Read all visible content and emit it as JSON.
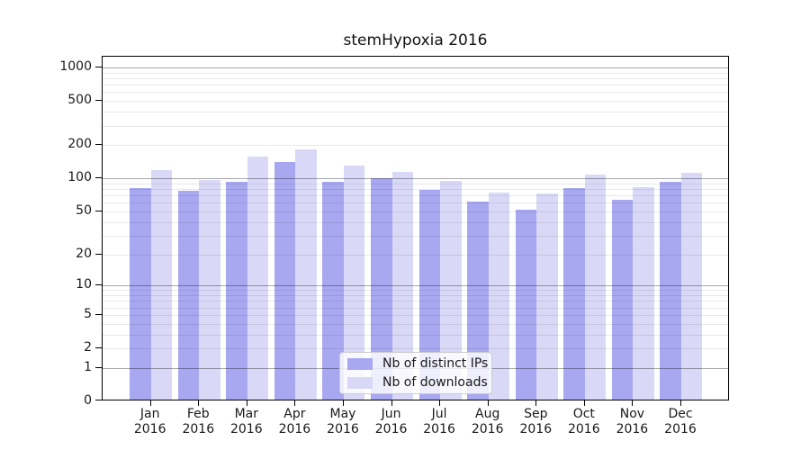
{
  "chart_data": {
    "type": "bar",
    "title": "stemHypoxia 2016",
    "categories": [
      "Jan",
      "Feb",
      "Mar",
      "Apr",
      "May",
      "Jun",
      "Jul",
      "Aug",
      "Sep",
      "Oct",
      "Nov",
      "Dec"
    ],
    "category_year": "2016",
    "series": [
      {
        "name": "Nb of distinct IPs",
        "color": "#a8a8f0",
        "values": [
          78,
          74,
          89,
          135,
          89,
          97,
          75,
          59,
          50,
          79,
          61,
          89
        ]
      },
      {
        "name": "Nb of downloads",
        "color": "#d9d9f7",
        "values": [
          115,
          93,
          151,
          175,
          125,
          110,
          91,
          71,
          70,
          104,
          80,
          108
        ]
      }
    ],
    "yaxis": {
      "scale": "log1p",
      "ticks": [
        0,
        1,
        2,
        5,
        10,
        20,
        50,
        100,
        200,
        500,
        1000
      ],
      "major_gridlines": [
        1,
        10,
        100,
        1000
      ],
      "minor_gridline_decades": [
        1,
        10,
        100
      ],
      "max": 1250,
      "grid": true
    },
    "xlabel": "",
    "ylabel": "",
    "legend_position": "lower-center"
  },
  "colors": {
    "spine": "#000000",
    "text": "#1a1a1a",
    "legend_border": "#cccccc"
  }
}
